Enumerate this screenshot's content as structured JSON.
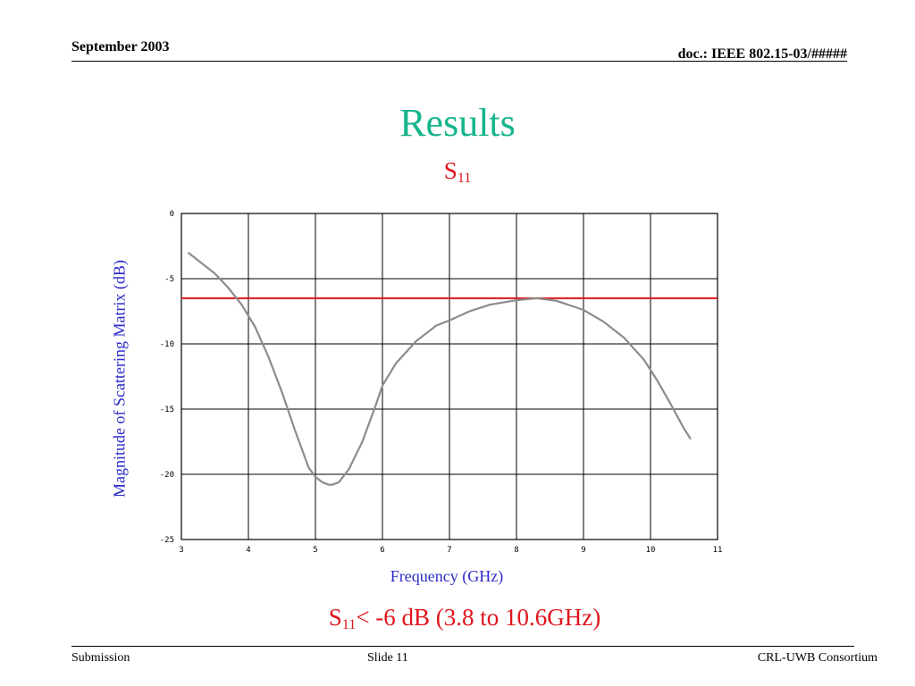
{
  "header": {
    "date": "September 2003",
    "doc": "doc.: IEEE 802.15-03/#####"
  },
  "slide": {
    "title": "Results",
    "subtitle_main": "S",
    "subtitle_sub": "11",
    "result_main": "S",
    "result_sub": "11",
    "result_rest": "< -6 dB  (3.8 to 10.6GHz)"
  },
  "footer": {
    "left": "Submission",
    "center": "Slide 11",
    "right": "CRL-UWB Consortium"
  },
  "colors": {
    "title": "#17b58d",
    "accent_red": "#e0141c",
    "axis_label": "#2b2bc8",
    "curve": "#8c8c8c",
    "threshold": "#e0141c"
  },
  "chart_data": {
    "type": "line",
    "title": "S11",
    "xlabel": "Frequency (GHz)",
    "ylabel": "Magnitude of Scattering Matrix (dB)",
    "xlim": [
      3,
      11
    ],
    "ylim": [
      -25,
      0
    ],
    "x_ticks": [
      "3",
      "4",
      "5",
      "6",
      "7",
      "8",
      "9",
      "10",
      "11"
    ],
    "y_ticks": [
      "0",
      "-5",
      "-10",
      "-15",
      "-20",
      "-25"
    ],
    "grid": true,
    "threshold": -6.5,
    "series": [
      {
        "x": [
          3.1,
          3.3,
          3.5,
          3.7,
          3.9,
          4.1,
          4.3,
          4.5,
          4.7,
          4.9,
          5.0,
          5.1,
          5.2,
          5.25,
          5.35,
          5.5,
          5.7,
          5.9,
          6.0,
          6.2,
          6.5,
          6.8,
          7.0,
          7.3,
          7.6,
          8.0,
          8.3,
          8.6,
          9.0,
          9.3,
          9.6,
          9.9,
          10.1,
          10.3,
          10.5,
          10.6
        ],
        "y": [
          -3.0,
          -3.8,
          -4.6,
          -5.7,
          -7.0,
          -8.7,
          -11.0,
          -13.7,
          -16.7,
          -19.5,
          -20.2,
          -20.6,
          -20.8,
          -20.8,
          -20.6,
          -19.6,
          -17.5,
          -14.7,
          -13.2,
          -11.5,
          -9.8,
          -8.6,
          -8.2,
          -7.5,
          -7.0,
          -6.65,
          -6.5,
          -6.7,
          -7.4,
          -8.3,
          -9.5,
          -11.2,
          -12.8,
          -14.6,
          -16.5,
          -17.3
        ]
      }
    ]
  }
}
